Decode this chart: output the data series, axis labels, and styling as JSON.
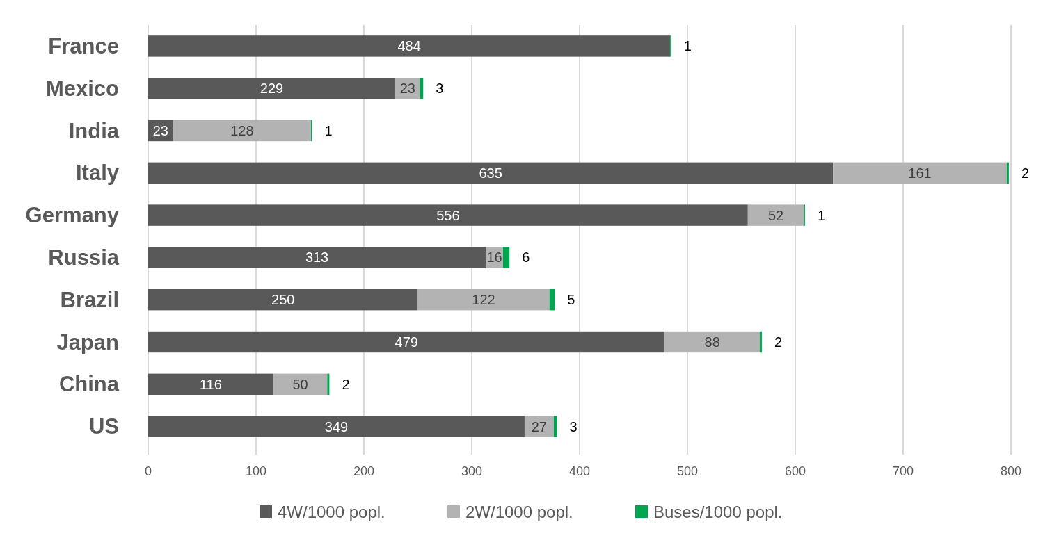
{
  "chart_data": {
    "type": "bar",
    "orientation": "horizontal",
    "stacked": true,
    "categories": [
      "France",
      "Mexico",
      "India",
      "Italy",
      "Germany",
      "Russia",
      "Brazil",
      "Japan",
      "China",
      "US"
    ],
    "series": [
      {
        "name": "4W/1000 popl.",
        "color": "#595959",
        "values": [
          484,
          229,
          23,
          635,
          556,
          313,
          250,
          479,
          116,
          349
        ]
      },
      {
        "name": "2W/1000 popl.",
        "color": "#b3b3b3",
        "values": [
          null,
          23,
          128,
          161,
          52,
          16,
          122,
          88,
          50,
          27
        ]
      },
      {
        "name": "Buses/1000 popl.",
        "color": "#00a550",
        "values": [
          1,
          3,
          1,
          2,
          1,
          6,
          5,
          2,
          2,
          3
        ]
      }
    ],
    "xlim": [
      0,
      800
    ],
    "xticks": [
      0,
      100,
      200,
      300,
      400,
      500,
      600,
      700,
      800
    ],
    "grid": "x",
    "legend": "bottom",
    "data_labels": true
  }
}
